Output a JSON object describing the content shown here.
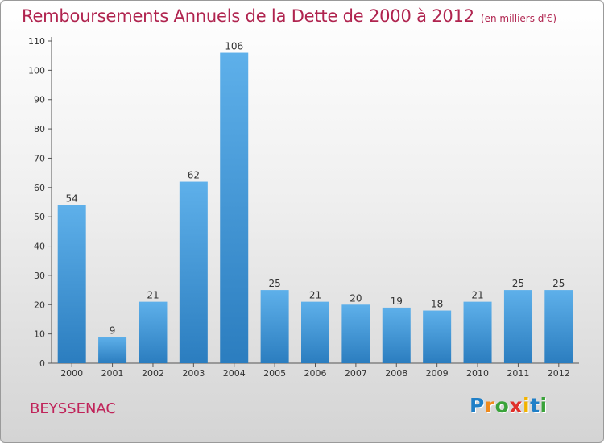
{
  "chart_data": {
    "type": "bar",
    "title": "Remboursements Annuels de la Dette de 2000 à 2012",
    "subtitle": "(en milliers d'€)",
    "categories": [
      "2000",
      "2001",
      "2002",
      "2003",
      "2004",
      "2005",
      "2006",
      "2007",
      "2008",
      "2009",
      "2010",
      "2011",
      "2012"
    ],
    "values": [
      54,
      9,
      21,
      62,
      106,
      25,
      21,
      20,
      19,
      18,
      21,
      25,
      25
    ],
    "data_labels": [
      "54",
      "9",
      "21",
      "62",
      "106",
      "25",
      "21",
      "20",
      "19",
      "18",
      "21",
      "25",
      "25"
    ],
    "ylim": [
      0,
      110
    ],
    "yticks": [
      0,
      10,
      20,
      30,
      40,
      50,
      60,
      70,
      80,
      90,
      100,
      110
    ],
    "grid": false,
    "bar_color_light": "#5eb0ea",
    "bar_color_dark": "#2b7dbf"
  },
  "footer": {
    "commune": "BEYSSENAC",
    "logo_letters": [
      "P",
      "r",
      "o",
      "x",
      "i",
      "t",
      "i"
    ],
    "logo_colors": [
      "#1f7fc7",
      "#f08a1c",
      "#3aa33a",
      "#e0302a",
      "#f2b300",
      "#1f7fc7",
      "#3aa33a"
    ]
  }
}
